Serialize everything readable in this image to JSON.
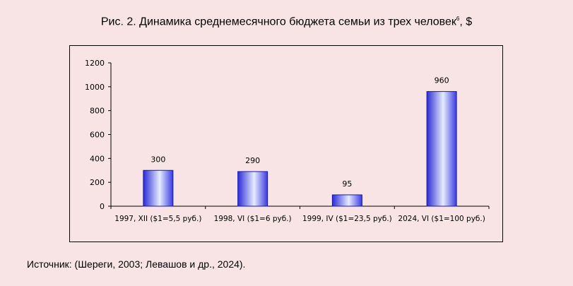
{
  "title": "Рис. 2. Динамика среднемесячного бюджета семьи из трех человек",
  "title_footnote": "6",
  "title_unit": ", $",
  "source": "Источник: (Шереги, 2003; Левашов и др., 2024).",
  "colors": {
    "background": "#f8e4e4",
    "bar_dark": "#2b2bd6",
    "bar_light": "#e6ecff"
  },
  "chart_data": {
    "type": "bar",
    "categories": [
      "1997, XII ($1=5,5 руб.)",
      "1998, VI ($1=6 руб.)",
      "1999, IV ($1=23,5 руб.)",
      "2024, VI ($1=100 руб.)"
    ],
    "values": [
      300,
      290,
      95,
      960
    ],
    "data_labels": [
      "300",
      "290",
      "95",
      "960"
    ],
    "ylim": [
      0,
      1200
    ],
    "yticks": [
      "0",
      "200",
      "400",
      "600",
      "800",
      "1000",
      "1200"
    ],
    "grid": false,
    "xlabel": "",
    "ylabel": ""
  }
}
